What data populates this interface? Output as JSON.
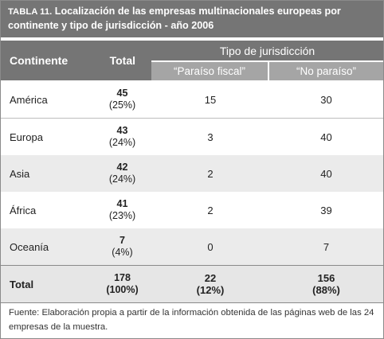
{
  "title": {
    "tag": "TABLA 11.",
    "text": " Localización de las empresas multinacionales europeas por continente y tipo de jurisdicción - año 2006"
  },
  "headers": {
    "continente": "Continente",
    "total": "Total",
    "tipo": "Tipo de jurisdicción",
    "paraiso": "“Paraíso fiscal”",
    "no_paraiso": "“No paraíso”"
  },
  "rows": [
    {
      "name": "América",
      "total": "45",
      "pct": "(25%)",
      "paraiso": "15",
      "no_paraiso": "30"
    },
    {
      "name": "Europa",
      "total": "43",
      "pct": "(24%)",
      "paraiso": "3",
      "no_paraiso": "40"
    },
    {
      "name": "Asia",
      "total": "42",
      "pct": "(24%)",
      "paraiso": "2",
      "no_paraiso": "40"
    },
    {
      "name": "África",
      "total": "41",
      "pct": "(23%)",
      "paraiso": "2",
      "no_paraiso": "39"
    },
    {
      "name": "Oceanía",
      "total": "7",
      "pct": "(4%)",
      "paraiso": "0",
      "no_paraiso": "7"
    }
  ],
  "totals": {
    "label": "Total",
    "total": "178",
    "total_pct": "(100%)",
    "paraiso": "22",
    "paraiso_pct": "(12%)",
    "no_paraiso": "156",
    "no_paraiso_pct": "(88%)"
  },
  "footnote": "Fuente: Elaboración propia a partir de la información obtenida de las páginas web de las 24 empresas de la muestra."
}
